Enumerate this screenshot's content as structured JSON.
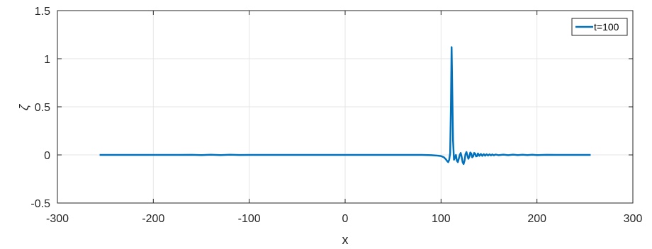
{
  "chart_data": {
    "type": "line",
    "title": "",
    "xlabel": "x",
    "ylabel": "ζ",
    "xlim": [
      -300,
      300
    ],
    "ylim": [
      -0.5,
      1.5
    ],
    "xticks": [
      -300,
      -200,
      -100,
      0,
      100,
      200,
      300
    ],
    "yticks": [
      -0.5,
      0,
      0.5,
      1,
      1.5
    ],
    "xtick_labels": [
      "-300",
      "-200",
      "-100",
      "0",
      "100",
      "200",
      "300"
    ],
    "ytick_labels": [
      "-0.5",
      "0",
      "0.5",
      "1",
      "1.5"
    ],
    "grid": true,
    "legend_position": "top-right",
    "colors": {
      "series": "#0072BD",
      "grid": "#E6E6E6",
      "axis": "#262626"
    },
    "series": [
      {
        "name": "t=100",
        "x": [
          -256,
          -180,
          -160,
          -150,
          -140,
          -130,
          -120,
          -110,
          -100,
          0,
          50,
          80,
          90,
          95,
          100,
          103,
          105,
          106.5,
          107.5,
          108.5,
          109.5,
          110.3,
          111,
          111.8,
          112.5,
          113.5,
          114.5,
          115.5,
          116.5,
          117.5,
          118.5,
          119.5,
          120.5,
          121.5,
          122.5,
          123.5,
          124.5,
          125.5,
          126.5,
          127.5,
          128.5,
          129.5,
          130.5,
          131.5,
          132.5,
          133.5,
          134.5,
          135.5,
          136.5,
          137.5,
          138.5,
          140,
          141.5,
          143,
          144.5,
          146,
          147.5,
          149,
          150.5,
          152,
          153.5,
          155,
          157,
          160,
          165,
          170,
          175,
          180,
          185,
          190,
          195,
          200,
          210,
          220,
          230,
          240,
          256
        ],
        "y": [
          0,
          0,
          0.001,
          -0.002,
          0.002,
          -0.002,
          0.002,
          -0.001,
          0,
          0,
          0,
          0,
          -0.003,
          -0.006,
          -0.012,
          -0.025,
          -0.045,
          -0.065,
          -0.075,
          -0.05,
          0.02,
          0.5,
          1.12,
          0.6,
          0.15,
          -0.05,
          -0.03,
          0.0,
          -0.06,
          -0.075,
          -0.04,
          0.0,
          0.02,
          -0.02,
          -0.075,
          -0.095,
          -0.06,
          0.01,
          0.03,
          -0.005,
          -0.04,
          -0.02,
          0.025,
          0.015,
          -0.025,
          -0.015,
          0.02,
          0.015,
          -0.015,
          -0.012,
          0.015,
          -0.01,
          0.01,
          -0.01,
          0.008,
          -0.008,
          0.007,
          -0.006,
          0.006,
          -0.005,
          0.005,
          -0.004,
          0.004,
          -0.003,
          0.003,
          -0.003,
          0.003,
          -0.002,
          0.002,
          -0.002,
          0.002,
          -0.002,
          0.001,
          0,
          0,
          0,
          0
        ]
      }
    ]
  }
}
